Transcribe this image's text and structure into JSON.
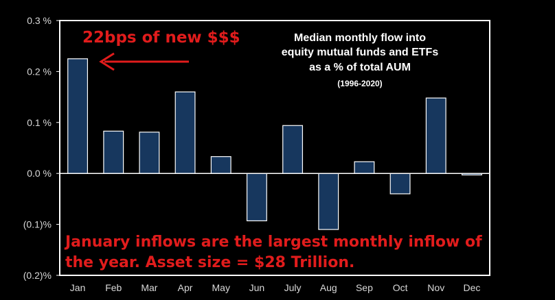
{
  "chart_data": {
    "type": "bar",
    "title_lines": [
      "Median monthly flow into",
      "equity mutual funds and ETFs",
      "as a % of total AUM"
    ],
    "subtitle": "(1996-2020)",
    "categories": [
      "Jan",
      "Feb",
      "Mar",
      "Apr",
      "May",
      "Jun",
      "July",
      "Aug",
      "Sep",
      "Oct",
      "Nov",
      "Dec"
    ],
    "values": [
      0.225,
      0.083,
      0.081,
      0.16,
      0.033,
      -0.093,
      0.094,
      -0.11,
      0.023,
      -0.04,
      0.148,
      -0.003
    ],
    "y_ticks": [
      0.3,
      0.2,
      0.1,
      0.0,
      -0.1,
      -0.2
    ],
    "y_tick_labels": [
      "0.3 %",
      "0.2 %",
      "0.1 %",
      "0.0 %",
      "(0.1)%",
      "(0.2)%"
    ],
    "ylim": [
      -0.2,
      0.3
    ],
    "xlabel": "",
    "ylabel": "",
    "grid": false,
    "annotations": {
      "callout": "22bps of new $$$",
      "footer_lines": [
        "January inflows are the largest monthly inflow of",
        "the year. Asset size = $28 Trillion."
      ]
    },
    "colors": {
      "bar_fill": "#17375e",
      "bar_stroke": "#ffffff",
      "axis": "#ffffff",
      "annotation": "#e11c1c",
      "background": "#000000"
    }
  }
}
